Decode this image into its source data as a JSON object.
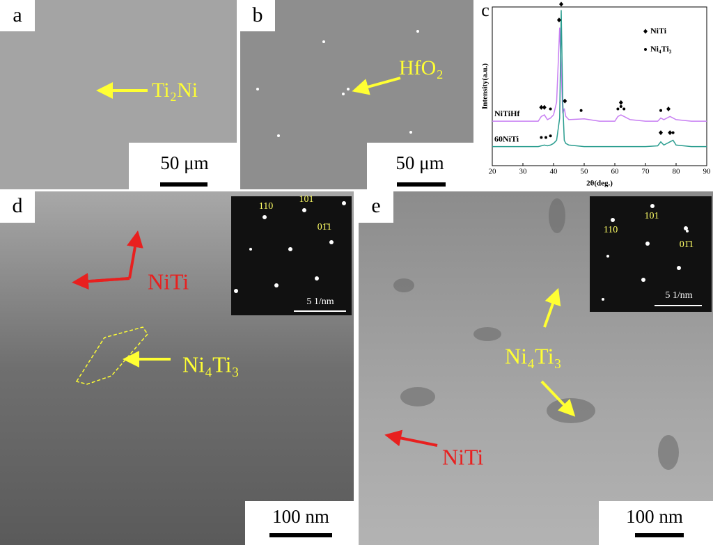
{
  "panels": [
    {
      "label": "a",
      "annotation": "Ti₂Ni",
      "scale_bar": "50 μm"
    },
    {
      "label": "b",
      "annotation": "HfO₂",
      "scale_bar": "50 μm"
    },
    {
      "label": "c"
    },
    {
      "label": "d",
      "annotations": [
        "NiTi",
        "Ni₄Ti₃"
      ],
      "scale_bar": "100 nm",
      "inset": {
        "spots": [
          "110",
          "101",
          "01̄1"
        ],
        "scale_bar": "5 1/nm"
      }
    },
    {
      "label": "e",
      "annotations": [
        "Ni₄Ti₃",
        "NiTi"
      ],
      "scale_bar": "100 nm",
      "inset": {
        "spots": [
          "110",
          "101",
          "01̄1"
        ],
        "scale_bar": "5 1/nm"
      }
    }
  ],
  "chart_data": {
    "type": "line",
    "x_label": "2θ(deg.)",
    "y_label": "Intensity(a.u.)",
    "xlim": [
      20,
      90
    ],
    "xticks": [
      20,
      30,
      40,
      50,
      60,
      70,
      80,
      90
    ],
    "ylim": [
      0,
      100
    ],
    "x": [
      20,
      25,
      30,
      35,
      36,
      37,
      38,
      39,
      40,
      41,
      42,
      42.5,
      43,
      43.5,
      44,
      45,
      50,
      55,
      60,
      61,
      62,
      63,
      65,
      70,
      74,
      75,
      76,
      78,
      79,
      80,
      85,
      90
    ],
    "series": [
      {
        "name": "NiTiHf",
        "color": "#c77ef2",
        "values": [
          28,
          28,
          28,
          28,
          31,
          32,
          29,
          30,
          32,
          40,
          87,
          60,
          33,
          36,
          31,
          29,
          29.5,
          28,
          28,
          31,
          32,
          31,
          29,
          28,
          28,
          30,
          29,
          31,
          30,
          29,
          28,
          28
        ]
      },
      {
        "name": "60NiTi",
        "color": "#2a9d8f",
        "values": [
          12,
          12,
          12,
          12,
          12.5,
          13,
          12.5,
          13,
          14,
          16,
          30,
          98,
          40,
          16,
          14,
          13,
          12,
          12,
          12,
          12,
          12,
          12,
          12,
          12,
          12.5,
          15,
          13,
          15,
          16,
          13,
          12,
          12
        ]
      }
    ],
    "legend": [
      {
        "name": "NiTi",
        "marker": "diamond"
      },
      {
        "name": "Ni₄Ti₃",
        "marker": "dot"
      }
    ],
    "markers": [
      {
        "marker": "diamond",
        "x": 36,
        "y": 35
      },
      {
        "marker": "diamond",
        "x": 37,
        "y": 35
      },
      {
        "marker": "dot",
        "x": 39,
        "y": 34
      },
      {
        "marker": "diamond",
        "x": 41.8,
        "y": 90
      },
      {
        "marker": "diamond",
        "x": 43.7,
        "y": 39
      },
      {
        "marker": "dot",
        "x": 49,
        "y": 33
      },
      {
        "marker": "dot",
        "x": 61,
        "y": 34
      },
      {
        "marker": "diamond",
        "x": 62,
        "y": 38
      },
      {
        "marker": "dot",
        "x": 63,
        "y": 34
      },
      {
        "marker": "dot",
        "x": 62,
        "y": 35.5
      },
      {
        "marker": "dot",
        "x": 75,
        "y": 33
      },
      {
        "marker": "diamond",
        "x": 77.5,
        "y": 34
      },
      {
        "marker": "dot",
        "x": 36,
        "y": 16
      },
      {
        "marker": "dot",
        "x": 37.5,
        "y": 16
      },
      {
        "marker": "dot",
        "x": 39,
        "y": 17
      },
      {
        "marker": "diamond",
        "x": 42.5,
        "y": 100
      },
      {
        "marker": "diamond",
        "x": 75,
        "y": 19
      },
      {
        "marker": "diamond",
        "x": 78,
        "y": 19
      },
      {
        "marker": "dot",
        "x": 79,
        "y": 19
      }
    ]
  }
}
